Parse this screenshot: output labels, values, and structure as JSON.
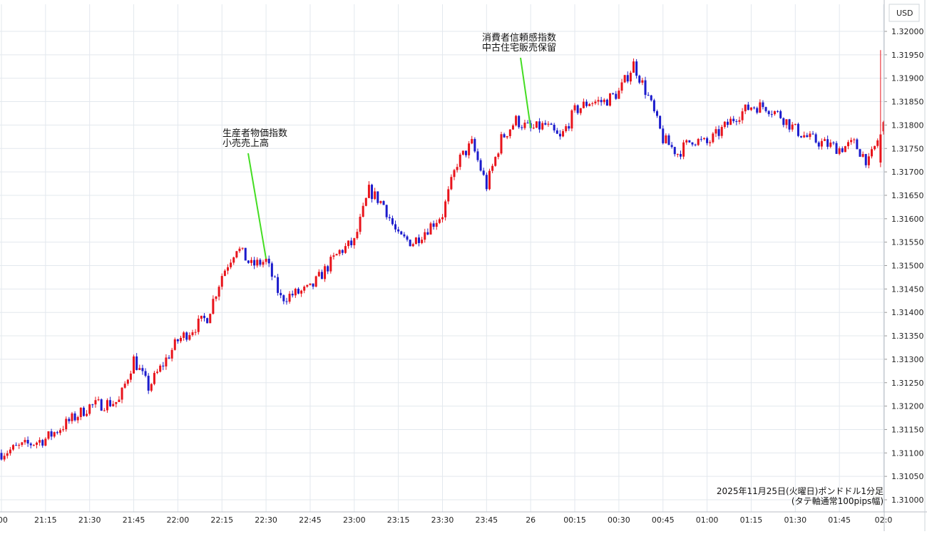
{
  "chart_data": {
    "type": "candlestick",
    "currency_label": "USD",
    "y_ticks": [
      "1.32000",
      "1.31950",
      "1.31900",
      "1.31850",
      "1.31800",
      "1.31750",
      "1.31700",
      "1.31650",
      "1.31600",
      "1.31550",
      "1.31500",
      "1.31450",
      "1.31400",
      "1.31350",
      "1.31300",
      "1.31250",
      "1.31200",
      "1.31150",
      "1.31100",
      "1.31050",
      "1.31000"
    ],
    "ylim": [
      1.3097,
      1.3204
    ],
    "x_ticks": [
      ":00",
      "21:15",
      "21:30",
      "21:45",
      "22:00",
      "22:15",
      "22:30",
      "22:45",
      "23:00",
      "23:15",
      "23:30",
      "23:45",
      "26",
      "00:15",
      "00:30",
      "00:45",
      "01:00",
      "01:15",
      "01:30",
      "01:45",
      "02:0"
    ],
    "grid": true,
    "up_color": "#e8141c",
    "down_color": "#1b1bcc",
    "annotation_color": "#44dd22",
    "annotations": [
      {
        "lines": [
          "生産者物価指数",
          "小売売上高"
        ],
        "time": "22:30"
      },
      {
        "lines": [
          "消費者信頼感指数",
          "中古住宅販売保留"
        ],
        "time": "00:00"
      }
    ],
    "caption_lines": [
      "2025年11月25日(火曜日)ポンドドル1分足",
      "(タテ軸通常100pips幅)"
    ],
    "key_points": [
      {
        "time": "21:00",
        "close": 1.311
      },
      {
        "time": "21:15",
        "close": 1.3113
      },
      {
        "time": "21:30",
        "close": 1.312
      },
      {
        "time": "21:40",
        "close": 1.3121
      },
      {
        "time": "21:45",
        "close": 1.313
      },
      {
        "time": "21:50",
        "close": 1.3124
      },
      {
        "time": "22:00",
        "close": 1.3134
      },
      {
        "time": "22:10",
        "close": 1.3139
      },
      {
        "time": "22:15",
        "close": 1.3148
      },
      {
        "time": "22:20",
        "close": 1.3154
      },
      {
        "time": "22:25",
        "close": 1.315
      },
      {
        "time": "22:30",
        "close": 1.3151
      },
      {
        "time": "22:35",
        "close": 1.3143
      },
      {
        "time": "22:45",
        "close": 1.3145
      },
      {
        "time": "22:55",
        "close": 1.3153
      },
      {
        "time": "23:00",
        "close": 1.3155
      },
      {
        "time": "23:05",
        "close": 1.3166
      },
      {
        "time": "23:10",
        "close": 1.3163
      },
      {
        "time": "23:15",
        "close": 1.3156
      },
      {
        "time": "23:20",
        "close": 1.3155
      },
      {
        "time": "23:30",
        "close": 1.3161
      },
      {
        "time": "23:35",
        "close": 1.3172
      },
      {
        "time": "23:40",
        "close": 1.3176
      },
      {
        "time": "23:45",
        "close": 1.3167
      },
      {
        "time": "23:50",
        "close": 1.3177
      },
      {
        "time": "23:55",
        "close": 1.3181
      },
      {
        "time": "00:00",
        "close": 1.3179
      },
      {
        "time": "00:05",
        "close": 1.318
      },
      {
        "time": "00:10",
        "close": 1.3177
      },
      {
        "time": "00:15",
        "close": 1.3183
      },
      {
        "time": "00:20",
        "close": 1.3185
      },
      {
        "time": "00:25",
        "close": 1.3185
      },
      {
        "time": "00:30",
        "close": 1.3187
      },
      {
        "time": "00:35",
        "close": 1.3193
      },
      {
        "time": "00:40",
        "close": 1.3186
      },
      {
        "time": "00:45",
        "close": 1.3177
      },
      {
        "time": "00:50",
        "close": 1.3174
      },
      {
        "time": "00:55",
        "close": 1.3177
      },
      {
        "time": "01:00",
        "close": 1.3176
      },
      {
        "time": "01:05",
        "close": 1.3179
      },
      {
        "time": "01:10",
        "close": 1.3182
      },
      {
        "time": "01:15",
        "close": 1.3184
      },
      {
        "time": "01:20",
        "close": 1.3184
      },
      {
        "time": "01:25",
        "close": 1.3182
      },
      {
        "time": "01:30",
        "close": 1.3179
      },
      {
        "time": "01:35",
        "close": 1.3177
      },
      {
        "time": "01:40",
        "close": 1.3176
      },
      {
        "time": "01:45",
        "close": 1.3175
      },
      {
        "time": "01:50",
        "close": 1.3176
      },
      {
        "time": "01:55",
        "close": 1.3172
      },
      {
        "time": "02:00",
        "close": 1.318
      }
    ],
    "final_spike": {
      "time": "01:59",
      "high": 1.3196,
      "low": 1.3171,
      "close": 1.3178
    }
  }
}
